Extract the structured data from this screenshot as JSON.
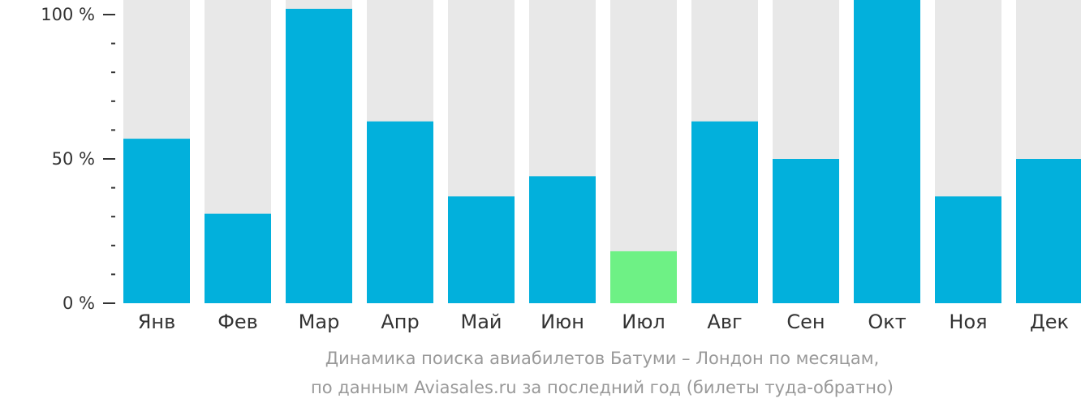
{
  "chart_data": {
    "type": "bar",
    "categories": [
      "Янв",
      "Фев",
      "Мар",
      "Апр",
      "Май",
      "Июн",
      "Июл",
      "Авг",
      "Сен",
      "Окт",
      "Ноя",
      "Дек"
    ],
    "values": [
      57,
      31,
      102,
      63,
      37,
      44,
      18,
      63,
      50,
      106,
      37,
      50
    ],
    "highlight_index": 6,
    "ylim": [
      0,
      100
    ],
    "yticks": [
      {
        "value": 0,
        "label": "0 %"
      },
      {
        "value": 50,
        "label": "50 %"
      },
      {
        "value": 100,
        "label": "100 %"
      }
    ],
    "minor_tick_step": 10,
    "colors": {
      "bar": "#02b0dc",
      "highlight": "#6ef185",
      "track": "#e8e8e8",
      "axis": "#333333"
    },
    "caption_lines": [
      "Динамика поиска авиабилетов Батуми – Лондон по месяцам,",
      "по данным Aviasales.ru за последний год (билеты туда-обратно)"
    ]
  }
}
